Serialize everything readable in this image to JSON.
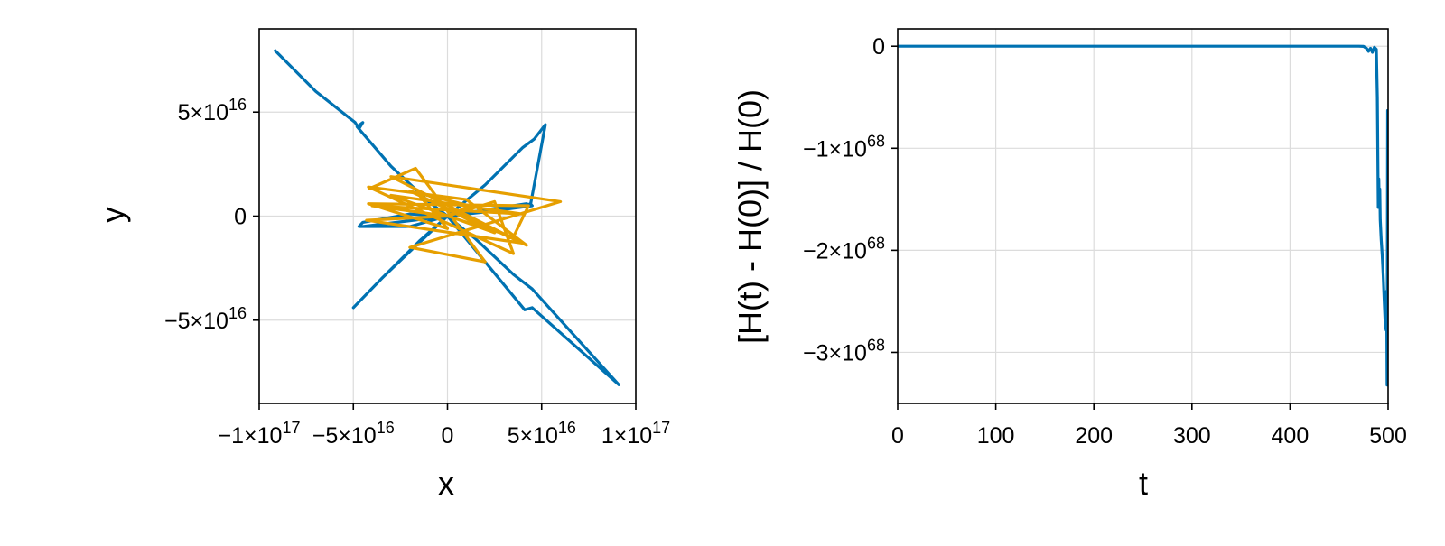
{
  "chart_data": [
    {
      "type": "line",
      "title": "",
      "xlabel": "x",
      "ylabel": "y",
      "xlim": [
        -1e+17,
        1e+17
      ],
      "ylim": [
        -9e+16,
        9e+16
      ],
      "grid": true,
      "legend": "none",
      "x_ticks": [
        {
          "value": -1e+17,
          "label": "−1×10",
          "exp": "17"
        },
        {
          "value": -5e+16,
          "label": "−5×10",
          "exp": "16"
        },
        {
          "value": 0,
          "label": "0",
          "exp": ""
        },
        {
          "value": 5e+16,
          "label": "5×10",
          "exp": "16"
        },
        {
          "value": 1e+17,
          "label": "1×10",
          "exp": "17"
        }
      ],
      "y_ticks": [
        {
          "value": 5e+16,
          "label": "5×10",
          "exp": "16"
        },
        {
          "value": 0,
          "label": "0",
          "exp": ""
        },
        {
          "value": -5e+16,
          "label": "−5×10",
          "exp": "16"
        }
      ],
      "series": [
        {
          "color": "#0072b2",
          "x": [
            -9.2e+16,
            -7e+16,
            -4.9e+16,
            -4.7e+16,
            -4.5e+16,
            -4.8e+16,
            -3e+16,
            -1e+16,
            0,
            2e+16,
            4e+16,
            4.6e+16,
            5.2e+16,
            4.4e+16,
            4.2e+16,
            2e+16,
            0,
            -2e+16,
            -3.5e+16,
            -5e+16,
            -3.5e+16,
            -1.5e+16,
            0,
            1.5e+16,
            3.5e+16,
            4.5e+16,
            9.1e+16,
            4.5e+16,
            4.1e+16,
            2e+16,
            0,
            -2e+16,
            -4.5e+16,
            -4.7e+16,
            -2e+16,
            0,
            2e+16,
            4.2e+16,
            4.4e+16,
            4.5e+16,
            2e+16,
            0,
            -4.5e+16
          ],
          "y": [
            8e+16,
            6e+16,
            4.5e+16,
            4.2e+16,
            4.5e+16,
            4.3e+16,
            2.4e+16,
            7000000000000000.0,
            0,
            1.5e+16,
            3.3e+16,
            3.7e+16,
            4.4e+16,
            5000000000000000.0,
            6000000000000000.0,
            3000000000000000.0,
            0,
            -1.7e+16,
            -3e+16,
            -4.4e+16,
            -3e+16,
            -1.2e+16,
            0,
            -1.1e+16,
            -2.8e+16,
            -3.5e+16,
            -8.1e+16,
            -4.4e+16,
            -4.5e+16,
            -2.2e+16,
            0,
            1000000000000000.0,
            -3000000000000000.0,
            -5000000000000000.0,
            -5000000000000000.0,
            0,
            2000000000000000.0,
            5000000000000000.0,
            6000000000000000.0,
            5000000000000000.0,
            2000000000000000.0,
            0,
            -5000000000000000.0
          ]
        },
        {
          "color": "#e69f00",
          "x": [
            -4.2e+16,
            -1.7e+16,
            2e+16,
            -2e+16,
            6e+16,
            -3e+16,
            4.2e+16,
            1e+16,
            -4.2e+16,
            3.5e+16,
            2.5e+16,
            0,
            1.2e+16,
            -2e+16,
            4e+16,
            -4.3e+16,
            0,
            3.5e+16,
            4.3e+16,
            -4.2e+16,
            0,
            -1.5e+16,
            2.5e+16,
            -3e+16,
            4e+16,
            -4e+16,
            0
          ],
          "y": [
            1.3e+16,
            2.3e+16,
            -2.2e+16,
            -1.5e+16,
            7000000000000000.0,
            1.9e+16,
            -1.4e+16,
            8000000000000000.0,
            1.4e+16,
            -1.8e+16,
            7000000000000000.0,
            0,
            5000000000000000.0,
            1.2e+16,
            -1.3e+16,
            -2000000000000000.0,
            0,
            -1e+16,
            5000000000000000.0,
            6000000000000000.0,
            -6000000000000000.0,
            1e+16,
            -8000000000000000.0,
            1e+16,
            1000000000000000.0,
            5000000000000000.0,
            0
          ]
        }
      ]
    },
    {
      "type": "line",
      "title": "",
      "xlabel": "t",
      "ylabel": "[H(t) - H(0)] / H(0)",
      "xlim": [
        0,
        500
      ],
      "ylim": [
        -3.5e+68,
        1.7e+67
      ],
      "grid": true,
      "legend": "none",
      "x_ticks": [
        {
          "value": 0,
          "label": "0",
          "exp": ""
        },
        {
          "value": 100,
          "label": "100",
          "exp": ""
        },
        {
          "value": 200,
          "label": "200",
          "exp": ""
        },
        {
          "value": 300,
          "label": "300",
          "exp": ""
        },
        {
          "value": 400,
          "label": "400",
          "exp": ""
        },
        {
          "value": 500,
          "label": "500",
          "exp": ""
        }
      ],
      "y_ticks": [
        {
          "value": 0,
          "label": "0",
          "exp": ""
        },
        {
          "value": -1e+68,
          "label": "−1×10",
          "exp": "68"
        },
        {
          "value": -2e+68,
          "label": "−2×10",
          "exp": "68"
        },
        {
          "value": -3e+68,
          "label": "−3×10",
          "exp": "68"
        }
      ],
      "series": [
        {
          "color": "#0072b2",
          "x": [
            0,
            100,
            200,
            300,
            400,
            470,
            475,
            478,
            480,
            482,
            484,
            486,
            488,
            489,
            490,
            490.5,
            491,
            491.5,
            492,
            493,
            494,
            495,
            496,
            497,
            498,
            498.5,
            499,
            499.5,
            500
          ],
          "y": [
            0,
            0,
            0,
            0,
            0,
            0,
            -2e+65,
            -2e+66,
            -5e+66,
            -2e+66,
            -6e+66,
            -1e+66,
            -3e+66,
            -5e+67,
            -1.58e+68,
            -1.3e+68,
            -1.55e+68,
            -1.4e+68,
            -1.7e+68,
            -1.9e+68,
            -2.05e+68,
            -2.25e+68,
            -2.5e+68,
            -2.7e+68,
            -2.78e+68,
            -2.4e+68,
            -3.32e+68,
            -6.3e+67,
            -6.3e+67
          ]
        }
      ]
    }
  ]
}
